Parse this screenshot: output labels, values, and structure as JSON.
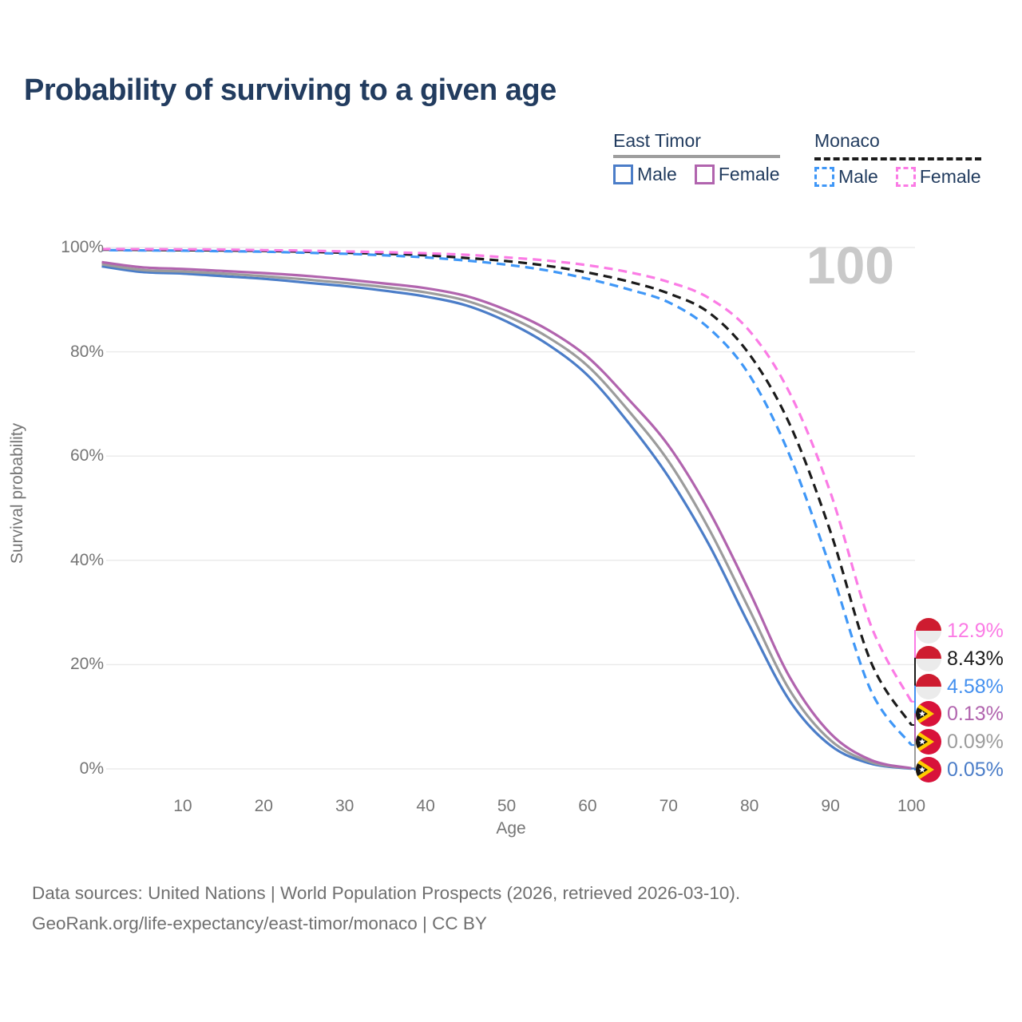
{
  "title": "Probability of surviving to a given age",
  "watermark": "100",
  "axes": {
    "y_title": "Survival probability",
    "x_title": "Age",
    "y_ticks": [
      {
        "label": "0%",
        "value": 0
      },
      {
        "label": "20%",
        "value": 20
      },
      {
        "label": "40%",
        "value": 40
      },
      {
        "label": "60%",
        "value": 60
      },
      {
        "label": "80%",
        "value": 80
      },
      {
        "label": "100%",
        "value": 100
      }
    ],
    "x_ticks": [
      10,
      20,
      30,
      40,
      50,
      60,
      70,
      80,
      90,
      100
    ]
  },
  "legend": {
    "groups": [
      {
        "name": "East Timor",
        "line_style": "solid",
        "line_color": "#9e9e9e",
        "items": [
          {
            "label": "Male",
            "color": "#4b7dc8"
          },
          {
            "label": "Female",
            "color": "#b164ae"
          }
        ]
      },
      {
        "name": "Monaco",
        "line_style": "dashed",
        "line_color": "#1b1b1b",
        "items": [
          {
            "label": "Male",
            "color": "#3f97f7"
          },
          {
            "label": "Female",
            "color": "#fb7be5"
          }
        ]
      }
    ]
  },
  "chart_data": {
    "type": "line",
    "title": "Probability of surviving to a given age",
    "xlabel": "Age",
    "ylabel": "Survival probability",
    "xlim": [
      0,
      100
    ],
    "ylim": [
      0,
      100
    ],
    "grid": "horizontal",
    "x": [
      0,
      5,
      10,
      15,
      20,
      25,
      30,
      35,
      40,
      45,
      50,
      55,
      60,
      65,
      70,
      75,
      80,
      85,
      90,
      95,
      100
    ],
    "series": [
      {
        "name": "East Timor Male",
        "country": "East Timor",
        "sex": "Male",
        "style": "solid",
        "color": "#4b7dc8",
        "end_value_label": "0.05%",
        "values": [
          96.4,
          95.3,
          95.0,
          94.5,
          94.0,
          93.3,
          92.6,
          91.7,
          90.6,
          88.9,
          85.8,
          81.5,
          75.5,
          66.5,
          56.0,
          43.0,
          27.5,
          13.0,
          4.5,
          1.0,
          0.05
        ]
      },
      {
        "name": "East Timor Both sexes",
        "country": "East Timor",
        "sex": "Both",
        "style": "solid",
        "color": "#9c9c9c",
        "end_value_label": "0.09%",
        "values": [
          96.8,
          95.7,
          95.4,
          95.0,
          94.5,
          93.9,
          93.2,
          92.4,
          91.4,
          89.8,
          86.9,
          82.9,
          77.3,
          68.8,
          59.0,
          46.0,
          30.5,
          15.0,
          5.5,
          1.3,
          0.09
        ]
      },
      {
        "name": "East Timor Female",
        "country": "East Timor",
        "sex": "Female",
        "style": "solid",
        "color": "#b164ae",
        "end_value_label": "0.13%",
        "values": [
          97.2,
          96.2,
          95.9,
          95.5,
          95.1,
          94.6,
          93.9,
          93.1,
          92.2,
          90.7,
          88.0,
          84.3,
          79.0,
          71.0,
          62.0,
          49.5,
          34.0,
          17.5,
          6.8,
          1.7,
          0.13
        ]
      },
      {
        "name": "Monaco Both sexes",
        "country": "Monaco",
        "sex": "Both",
        "style": "dashed",
        "color": "#1b1b1b",
        "end_value_label": "8.43%",
        "values": [
          99.6,
          99.55,
          99.5,
          99.45,
          99.35,
          99.2,
          99.0,
          98.8,
          98.5,
          98.0,
          97.4,
          96.5,
          95.2,
          93.5,
          91.2,
          87.5,
          79.5,
          66.0,
          45.5,
          20.5,
          8.43
        ]
      },
      {
        "name": "Monaco Male",
        "country": "Monaco",
        "sex": "Male",
        "style": "dashed",
        "color": "#3f97f7",
        "dash_offset": 9,
        "end_value_label": "4.58%",
        "values": [
          99.5,
          99.45,
          99.4,
          99.3,
          99.2,
          99.0,
          98.8,
          98.5,
          98.1,
          97.5,
          96.7,
          95.6,
          94.0,
          92.0,
          89.5,
          84.5,
          75.5,
          60.0,
          38.5,
          15.0,
          4.58
        ]
      },
      {
        "name": "Monaco Female",
        "country": "Monaco",
        "sex": "Female",
        "style": "dashed",
        "color": "#fb7be5",
        "end_value_label": "12.9%",
        "values": [
          99.7,
          99.68,
          99.65,
          99.6,
          99.5,
          99.4,
          99.25,
          99.1,
          98.9,
          98.6,
          98.1,
          97.5,
          96.6,
          95.3,
          93.4,
          90.3,
          84.0,
          72.0,
          53.0,
          27.5,
          12.9
        ]
      }
    ]
  },
  "end_labels": [
    {
      "value": "12.9%",
      "color": "#fb7be5",
      "flag": "monaco"
    },
    {
      "value": "8.43%",
      "color": "#1b1b1b",
      "flag": "monaco"
    },
    {
      "value": "4.58%",
      "color": "#4490ef",
      "flag": "monaco"
    },
    {
      "value": "0.13%",
      "color": "#b164ae",
      "flag": "east-timor"
    },
    {
      "value": "0.09%",
      "color": "#9c9c9c",
      "flag": "east-timor"
    },
    {
      "value": "0.05%",
      "color": "#4b7dc8",
      "flag": "east-timor"
    }
  ],
  "flag_colors": {
    "monaco": {
      "top": "#ce1c30",
      "bottom": "#ebebeb"
    },
    "east_timor": {
      "red": "#d8123a",
      "yellow": "#ffcc00",
      "black": "#151515",
      "star": "#ffffff"
    }
  },
  "footer": {
    "line1": "Data sources: United Nations | World Population Prospects (2026, retrieved 2026-03-10).",
    "line2": "GeoRank.org/life-expectancy/east-timor/monaco | CC BY"
  }
}
